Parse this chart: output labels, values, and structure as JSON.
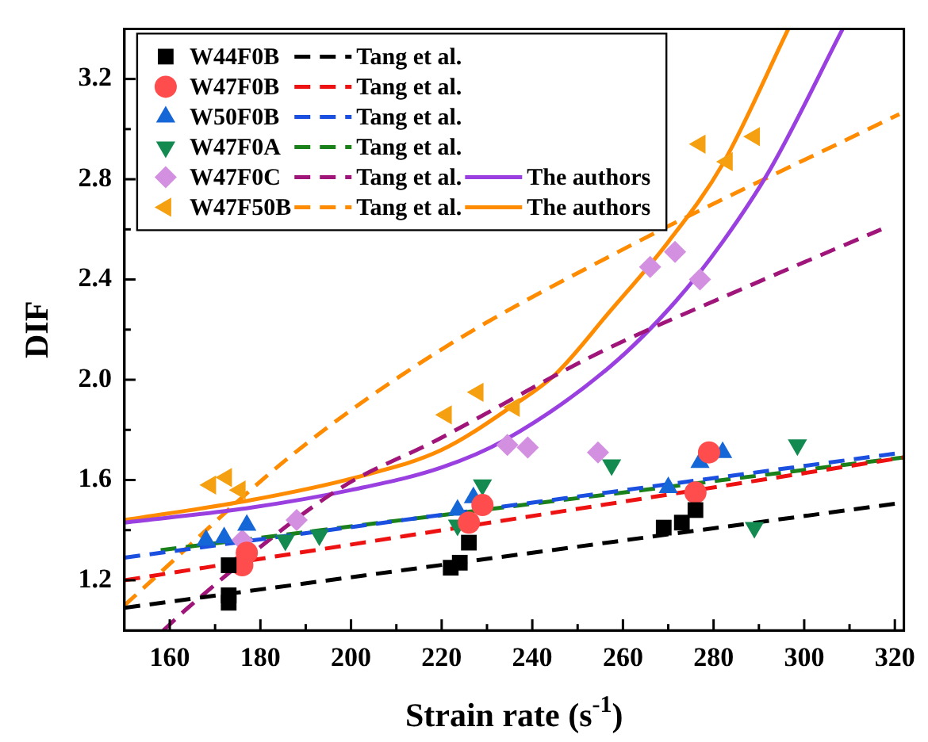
{
  "chart_data": {
    "type": "scatter",
    "xlabel": "Strain rate (s$^{-1}$)",
    "ylabel": "DIF",
    "xlim": [
      150,
      322
    ],
    "ylim": [
      1.0,
      3.4
    ],
    "xticks": [
      160,
      {
        "value": 170,
        "label": null
      },
      180,
      {
        "value": 190,
        "label": null
      },
      200,
      {
        "value": 210,
        "label": null
      },
      220,
      {
        "value": 230,
        "label": null
      },
      240,
      {
        "value": 250,
        "label": null
      },
      260,
      {
        "value": 270,
        "label": null
      },
      280,
      {
        "value": 290,
        "label": null
      },
      300,
      {
        "value": 310,
        "label": null
      },
      320
    ],
    "yticks": [
      1.2,
      {
        "value": 1.4,
        "label": null
      },
      1.6,
      {
        "value": 1.8,
        "label": null
      },
      {
        "value": 2.0,
        "label": "2.0"
      },
      {
        "value": 2.2,
        "label": null
      },
      2.4,
      {
        "value": 2.6,
        "label": null
      },
      2.8,
      {
        "value": 3.0,
        "label": null
      },
      3.2
    ],
    "grid": false,
    "legend": "top left",
    "series": [
      {
        "type": "scatter",
        "name": "W44F0B",
        "color": "#000000",
        "marker": "square",
        "x": [
          173,
          173,
          173,
          222,
          224,
          226,
          269,
          273,
          276
        ],
        "values": [
          1.26,
          1.14,
          1.11,
          1.25,
          1.27,
          1.35,
          1.41,
          1.43,
          1.48
        ]
      },
      {
        "type": "line",
        "name": "Tang et al.",
        "color": "#000000",
        "line_style": "dashed",
        "x": [
          150,
          322
        ],
        "values": [
          1.09,
          1.51
        ]
      },
      {
        "type": "scatter",
        "name": "W47F0B",
        "color": "#ff4d4d",
        "marker": "circle",
        "x": [
          176,
          177,
          226,
          229,
          276,
          279
        ],
        "values": [
          1.26,
          1.31,
          1.43,
          1.5,
          1.55,
          1.71
        ]
      },
      {
        "type": "line",
        "name": "Tang et al.",
        "color": "#ee1111",
        "line_style": "dashed",
        "x": [
          150,
          322
        ],
        "values": [
          1.2,
          1.69
        ]
      },
      {
        "type": "scatter",
        "name": "W50F0B",
        "color": "#1566d6",
        "marker": "triangle",
        "x": [
          168,
          172,
          177,
          223.5,
          227,
          270,
          277,
          282
        ],
        "values": [
          1.36,
          1.37,
          1.42,
          1.48,
          1.53,
          1.57,
          1.67,
          1.71
        ]
      },
      {
        "type": "line",
        "name": "Tang et al.",
        "color": "#1a4fe0",
        "line_style": "dashed",
        "x": [
          150,
          322
        ],
        "values": [
          1.29,
          1.71
        ]
      },
      {
        "type": "scatter",
        "name": "W47F0A",
        "color": "#138a50",
        "marker": "triangle-down",
        "x": [
          185.5,
          193,
          223.5,
          229,
          257.5,
          289,
          298.5
        ],
        "values": [
          1.36,
          1.38,
          1.42,
          1.58,
          1.66,
          1.41,
          1.74
        ]
      },
      {
        "type": "line",
        "name": "Tang et al.",
        "color": "#1a801a",
        "line_style": "dashed",
        "x": [
          158,
          322
        ],
        "values": [
          1.32,
          1.69
        ]
      },
      {
        "type": "scatter",
        "name": "W47F0C",
        "color": "#d490e0",
        "marker": "diamond",
        "x": [
          176,
          188,
          234.5,
          239,
          254.5,
          266,
          271.5,
          277
        ],
        "values": [
          1.36,
          1.44,
          1.74,
          1.73,
          1.71,
          2.45,
          2.51,
          2.4
        ]
      },
      {
        "type": "line",
        "name": "Tang et al.",
        "color": "#a0157a",
        "line_style": "dashed",
        "x": [
          158.6,
          164,
          197,
          219,
          255,
          286,
          317
        ],
        "values": [
          1.0,
          1.09,
          1.56,
          1.76,
          2.11,
          2.36,
          2.6
        ]
      },
      {
        "type": "line",
        "name": "The authors",
        "color": "#9b40e0",
        "line_style": "solid",
        "x": [
          150,
          178,
          200,
          220,
          234,
          257,
          271.5,
          282,
          292.5,
          308.5
        ],
        "values": [
          1.43,
          1.49,
          1.56,
          1.65,
          1.76,
          2.05,
          2.31,
          2.55,
          2.84,
          3.4
        ]
      },
      {
        "type": "scatter",
        "name": "W47F50B",
        "color": "#f5a010",
        "marker": "triangle-left",
        "x": [
          169,
          172.5,
          175.5,
          221,
          228,
          236,
          277,
          283,
          289
        ],
        "values": [
          1.58,
          1.61,
          1.56,
          1.86,
          1.95,
          1.89,
          2.94,
          2.87,
          2.97
        ]
      },
      {
        "type": "line",
        "name": "Tang et al.",
        "color": "#ff8c00",
        "line_style": "dashed",
        "x": [
          150,
          187,
          219,
          260,
          321
        ],
        "values": [
          1.1,
          1.7,
          2.11,
          2.52,
          3.06
        ]
      },
      {
        "type": "line",
        "name": "The authors",
        "color": "#ff8c00",
        "line_style": "solid",
        "x": [
          150,
          178,
          201,
          220,
          236,
          245,
          257,
          270,
          282,
          296.5
        ],
        "values": [
          1.44,
          1.52,
          1.61,
          1.72,
          1.9,
          2.02,
          2.27,
          2.55,
          2.86,
          3.4
        ]
      }
    ]
  }
}
